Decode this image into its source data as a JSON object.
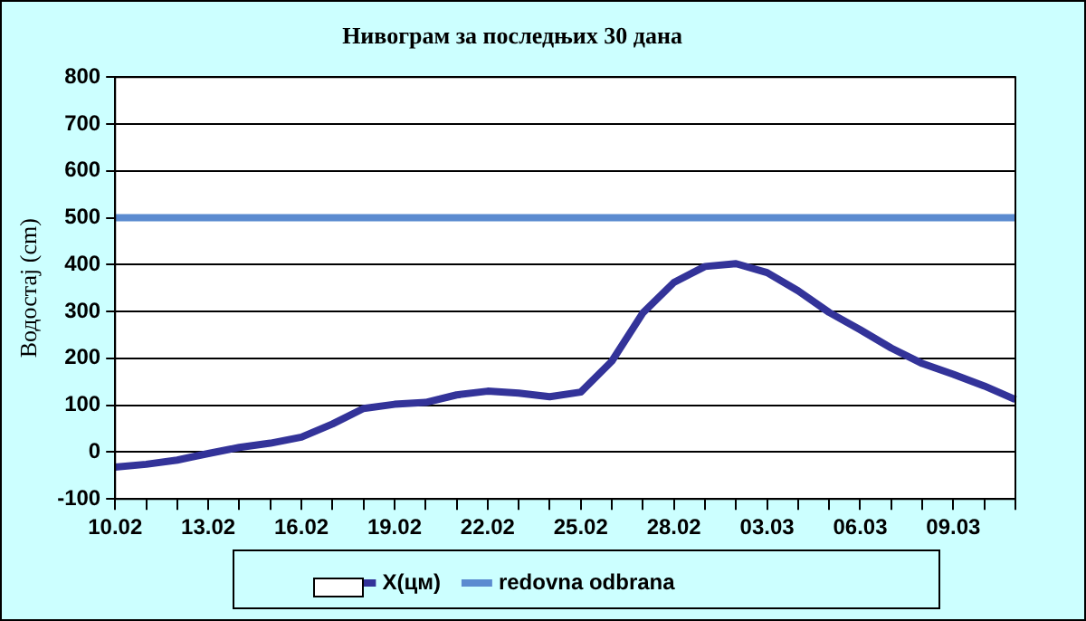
{
  "chart_data": {
    "type": "line",
    "title": "Нивограм за последњих 30 дана",
    "ylabel": "Водостај (cm)",
    "categories": [
      "10.02",
      null,
      null,
      "13.02",
      null,
      null,
      "16.02",
      null,
      null,
      "19.02",
      null,
      null,
      "22.02",
      null,
      null,
      "25.02",
      null,
      null,
      "28.02",
      null,
      null,
      "03.03",
      null,
      null,
      "06.03",
      null,
      null,
      "09.03",
      null,
      null
    ],
    "series": [
      {
        "name": "X(цм)",
        "color": "#333399",
        "values": [
          -32,
          -26,
          -17,
          -3,
          10,
          19,
          32,
          60,
          93,
          102,
          106,
          122,
          130,
          126,
          118,
          128,
          194,
          297,
          362,
          396,
          402,
          383,
          344,
          298,
          261,
          222,
          189,
          166,
          141,
          112
        ]
      },
      {
        "name": "redovna odbrana",
        "color": "#5b8bd0",
        "values": [
          500,
          500,
          500,
          500,
          500,
          500,
          500,
          500,
          500,
          500,
          500,
          500,
          500,
          500,
          500,
          500,
          500,
          500,
          500,
          500,
          500,
          500,
          500,
          500,
          500,
          500,
          500,
          500,
          500,
          500
        ]
      }
    ],
    "ylim": [
      -100,
      800
    ],
    "yticks": [
      -100,
      0,
      100,
      200,
      300,
      400,
      500,
      600,
      700,
      800
    ],
    "grid": "y",
    "legend": "bottom",
    "marker": "none",
    "line_style": "solid"
  }
}
